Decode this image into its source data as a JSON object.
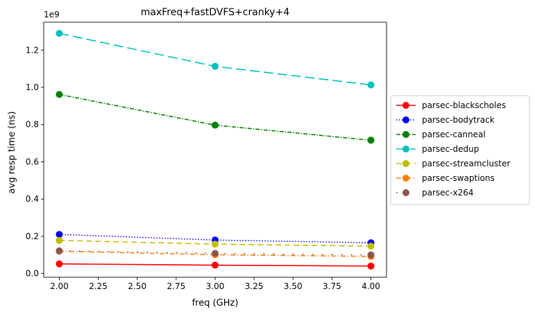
{
  "chart_data": {
    "type": "line",
    "title": "maxFreq+fastDVFS+cranky+4",
    "xlabel": "freq (GHz)",
    "ylabel": "avg resp time (ns)",
    "y_multiplier": "1e9",
    "x": [
      2.0,
      3.0,
      4.0
    ],
    "xlim": [
      1.9,
      4.1
    ],
    "ylim": [
      -0.02,
      1.35
    ],
    "x_ticks": [
      2.0,
      2.25,
      2.5,
      2.75,
      3.0,
      3.25,
      3.5,
      3.75,
      4.0
    ],
    "x_tick_labels": [
      "2.00",
      "2.25",
      "2.50",
      "2.75",
      "3.00",
      "3.25",
      "3.50",
      "3.75",
      "4.00"
    ],
    "y_ticks": [
      0.0,
      0.2,
      0.4,
      0.6,
      0.8,
      1.0,
      1.2
    ],
    "y_tick_labels": [
      "0.0",
      "0.2",
      "0.4",
      "0.6",
      "0.8",
      "1.0",
      "1.2"
    ],
    "grid": false,
    "legend_position": "right-outside",
    "series": [
      {
        "name": "parsec-blackscholes",
        "values": [
          0.052,
          0.045,
          0.04
        ],
        "color": "#ff0000",
        "dash": "solid"
      },
      {
        "name": "parsec-bodytrack",
        "values": [
          0.21,
          0.18,
          0.165
        ],
        "color": "#0000ff",
        "dash": "dotted"
      },
      {
        "name": "parsec-canneal",
        "values": [
          0.962,
          0.797,
          0.716
        ],
        "color": "#008000",
        "dash": "dashdot"
      },
      {
        "name": "parsec-dedup",
        "values": [
          1.29,
          1.113,
          1.013
        ],
        "color": "#00bfbf",
        "dash": "longdash"
      },
      {
        "name": "parsec-streamcluster",
        "values": [
          0.178,
          0.158,
          0.147
        ],
        "color": "#bfbf00",
        "dash": "dashed"
      },
      {
        "name": "parsec-swaptions",
        "values": [
          0.12,
          0.101,
          0.092
        ],
        "color": "#ff7f0e",
        "dash": "dashdot2"
      },
      {
        "name": "parsec-x264",
        "values": [
          0.122,
          0.108,
          0.1
        ],
        "color": "#8c564b",
        "dash": "sparse"
      }
    ]
  }
}
